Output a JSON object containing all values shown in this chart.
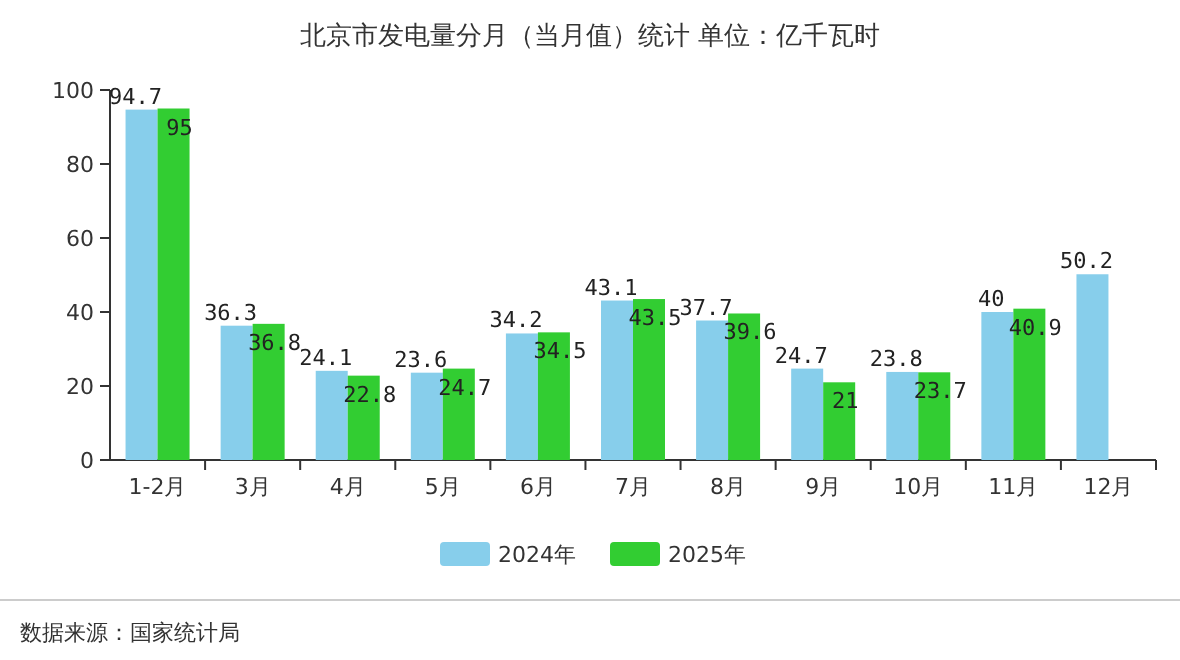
{
  "chart_data": {
    "type": "bar",
    "title": "北京市发电量分月（当月值）统计 单位：亿千瓦时",
    "categories": [
      "1-2月",
      "3月",
      "4月",
      "5月",
      "6月",
      "7月",
      "8月",
      "9月",
      "10月",
      "11月",
      "12月"
    ],
    "series": [
      {
        "name": "2024年",
        "color": "#87ceeb",
        "values": [
          94.7,
          36.3,
          24.1,
          23.6,
          34.2,
          43.1,
          37.7,
          24.7,
          23.8,
          40,
          50.2
        ]
      },
      {
        "name": "2025年",
        "color": "#32cd32",
        "values": [
          95,
          36.8,
          22.8,
          24.7,
          34.5,
          43.5,
          39.6,
          21,
          23.7,
          40.9,
          null
        ]
      }
    ],
    "ylim": [
      0,
      100
    ],
    "yticks": [
      0,
      20,
      40,
      60,
      80,
      100
    ],
    "legend": "bottom",
    "data_labels": true,
    "annotations": [
      "数据来源：国家统计局"
    ]
  }
}
